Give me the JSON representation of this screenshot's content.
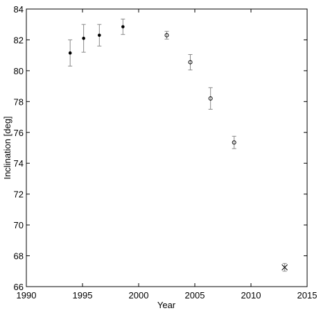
{
  "chart_data": {
    "type": "scatter",
    "x_label": "Year",
    "y_label": "Inclination [deg]",
    "xlim": [
      1990,
      2015
    ],
    "xticks": [
      1990,
      1995,
      2000,
      2005,
      2010,
      2015
    ],
    "ylim": [
      66,
      84
    ],
    "yticks": [
      66,
      68,
      70,
      72,
      74,
      76,
      78,
      80,
      82,
      84
    ],
    "error_color": "#888888",
    "series": [
      {
        "marker": "filled-circle",
        "color": "#000000",
        "x": [
          1993.9,
          1995.1,
          1996.5,
          1998.6
        ],
        "values": [
          81.15,
          82.1,
          82.3,
          82.85
        ],
        "errors": [
          0.85,
          0.9,
          0.7,
          0.5
        ]
      },
      {
        "marker": "open-circle",
        "color": "#000000",
        "x": [
          2002.5,
          2004.6,
          2006.4,
          2008.5
        ],
        "values": [
          82.3,
          80.55,
          78.2,
          75.35
        ],
        "errors": [
          0.25,
          0.5,
          0.7,
          0.4
        ]
      },
      {
        "marker": "cross",
        "color": "#000000",
        "x": [
          2013.0
        ],
        "values": [
          67.25
        ],
        "errors": [
          0.25
        ]
      }
    ]
  }
}
